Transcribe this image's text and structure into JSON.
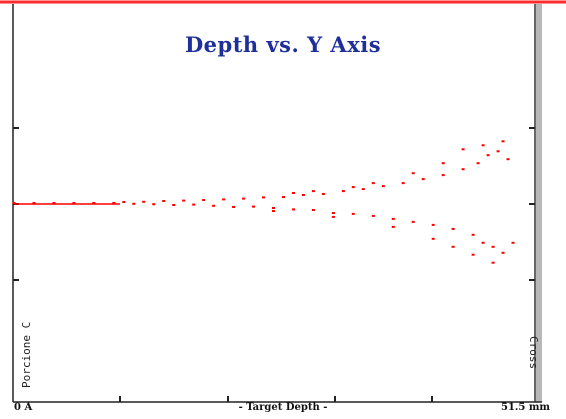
{
  "colors": {
    "points": "#ff0000",
    "title": "#1f2f9a",
    "top_border": "#ff2a2a",
    "frame": "#222222"
  },
  "labels": {
    "x_start": "0 A",
    "x_axis": "- Target Depth -",
    "x_end": "51.5 mm",
    "left_side": "Porcione C",
    "right_side": "Cross"
  },
  "chart_data": {
    "type": "scatter",
    "title": "Depth vs. Y Axis",
    "xlabel": "- Target Depth -",
    "ylabel": "",
    "x_tick_labels": [
      "0 A",
      "51.5 mm"
    ],
    "xlim": [
      0,
      51.5
    ],
    "ylim": [
      -1,
      1
    ],
    "grid": false,
    "legend": "none",
    "description_of_distribution": "",
    "series": [
      {
        "points": [
          [
            0,
            0
          ],
          [
            2,
            0
          ],
          [
            4,
            0
          ],
          [
            6,
            0
          ],
          [
            8,
            0
          ],
          [
            10,
            0
          ],
          [
            11,
            0.005
          ],
          [
            12,
            -0.004
          ],
          [
            13,
            0.006
          ],
          [
            14,
            -0.006
          ],
          [
            15,
            0.01
          ],
          [
            16,
            -0.01
          ],
          [
            17,
            0.012
          ],
          [
            18,
            -0.008
          ],
          [
            19,
            0.015
          ],
          [
            20,
            -0.014
          ],
          [
            21,
            0.018
          ],
          [
            22,
            -0.02
          ],
          [
            23,
            0.022
          ],
          [
            24,
            -0.018
          ],
          [
            25,
            0.028
          ],
          [
            26,
            -0.025
          ],
          [
            27,
            0.03
          ],
          [
            28,
            -0.032
          ],
          [
            29,
            0.04
          ],
          [
            30,
            -0.035
          ],
          [
            31,
            0.045
          ],
          [
            32,
            -0.05
          ],
          [
            33,
            0.06
          ],
          [
            34,
            -0.055
          ],
          [
            35,
            0.07
          ],
          [
            36,
            -0.065
          ],
          [
            37,
            0.085
          ],
          [
            38,
            -0.08
          ],
          [
            39,
            0.1
          ],
          [
            40,
            -0.095
          ],
          [
            41,
            0.12
          ],
          [
            42,
            -0.11
          ],
          [
            43,
            0.14
          ],
          [
            44,
            -0.13
          ],
          [
            45,
            0.17
          ],
          [
            46,
            -0.16
          ],
          [
            46.5,
            0.2
          ],
          [
            47,
            -0.2
          ],
          [
            47.5,
            0.24
          ],
          [
            48,
            -0.22
          ],
          [
            48.5,
            0.26
          ],
          [
            49,
            -0.25
          ],
          [
            49.5,
            0.22
          ],
          [
            50,
            -0.2
          ],
          [
            45,
            0.27
          ],
          [
            47,
            0.29
          ],
          [
            48,
            -0.3
          ],
          [
            49,
            0.31
          ],
          [
            44,
            -0.22
          ],
          [
            46,
            -0.26
          ],
          [
            43,
            0.2
          ],
          [
            42,
            -0.18
          ],
          [
            40,
            0.15
          ],
          [
            38,
            -0.12
          ],
          [
            36,
            0.1
          ],
          [
            34,
            0.08
          ],
          [
            32,
            -0.07
          ],
          [
            30,
            0.06
          ],
          [
            28,
            0.05
          ],
          [
            26,
            -0.04
          ]
        ]
      }
    ]
  }
}
